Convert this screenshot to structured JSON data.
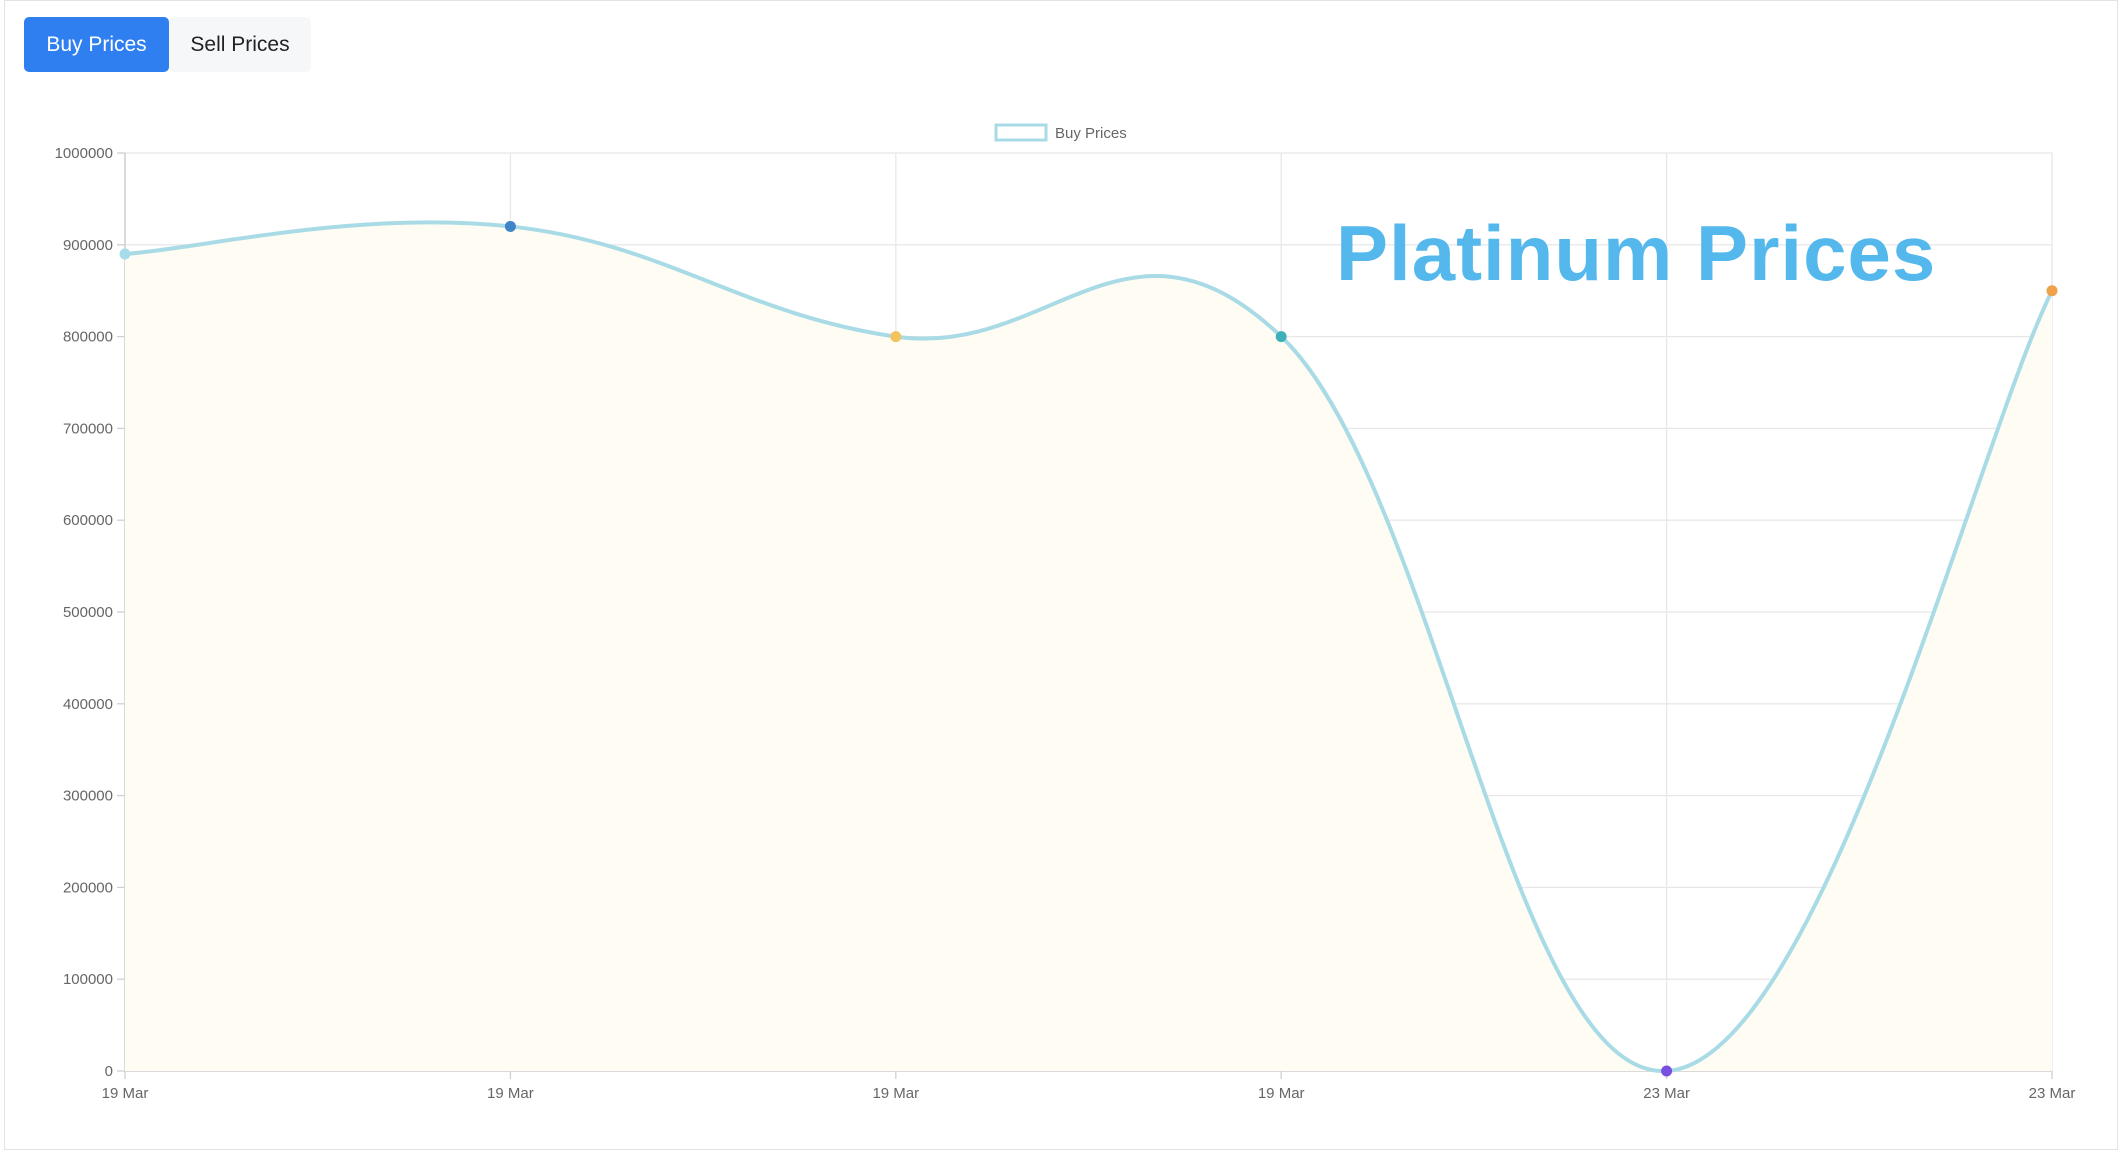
{
  "tabs": {
    "buy_label": "Buy Prices",
    "sell_label": "Sell Prices"
  },
  "overlay": {
    "title": "Platinum Prices"
  },
  "colors": {
    "accent": "#2f7ff1",
    "line": "#a9dbe6",
    "fill": "#fffdf3",
    "grid": "#e8e8e8",
    "title": "#54b8ec",
    "points": [
      "#a6dbe9",
      "#3f84c7",
      "#f3c35f",
      "#3fb0b8",
      "#7a4fe0",
      "#f0a24a"
    ]
  },
  "chart_data": {
    "type": "line",
    "title": "",
    "xlabel": "",
    "ylabel": "",
    "categories": [
      "19 Mar",
      "19 Mar",
      "19 Mar",
      "19 Mar",
      "23 Mar",
      "23 Mar"
    ],
    "series": [
      {
        "name": "Buy Prices",
        "values": [
          890000,
          920000,
          800000,
          800000,
          0,
          850000
        ]
      }
    ],
    "ylim": [
      0,
      1000000
    ],
    "yticks": [
      0,
      100000,
      200000,
      300000,
      400000,
      500000,
      600000,
      700000,
      800000,
      900000,
      1000000
    ],
    "ytick_labels": [
      "0",
      "100000",
      "200000",
      "300000",
      "400000",
      "500000",
      "600000",
      "700000",
      "800000",
      "900000",
      "1000000"
    ],
    "legend": "top-center",
    "grid": true,
    "smooth": true,
    "filled": true
  }
}
